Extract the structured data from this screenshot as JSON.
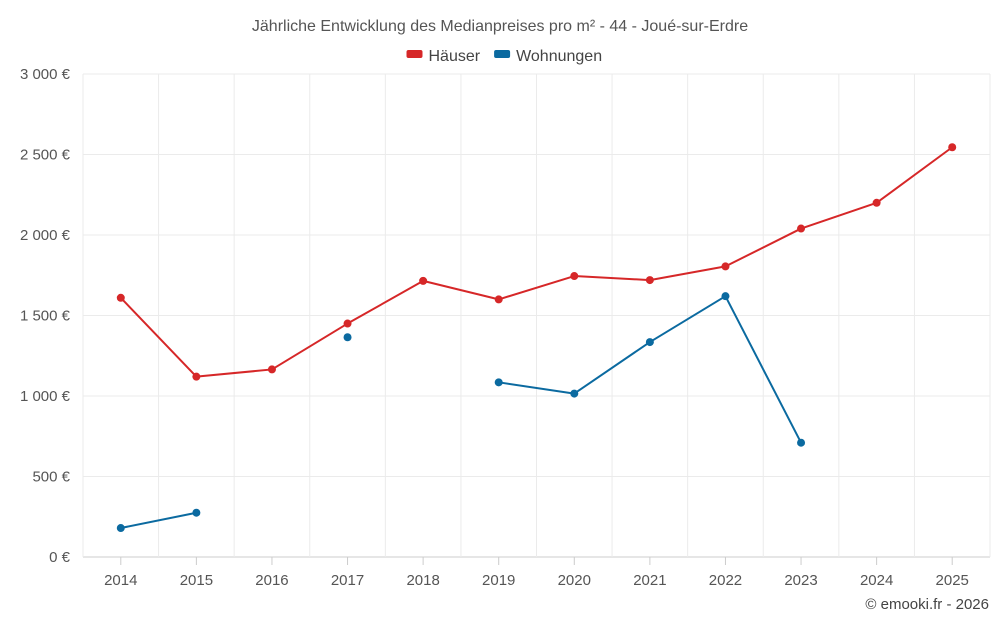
{
  "chart_data": {
    "type": "line",
    "title": "Jährliche Entwicklung des Medianpreises pro m² - 44 - Joué-sur-Erdre",
    "xlabel": "",
    "ylabel": "",
    "categories": [
      "2014",
      "2015",
      "2016",
      "2017",
      "2018",
      "2019",
      "2020",
      "2021",
      "2022",
      "2023",
      "2024",
      "2025"
    ],
    "ylim": [
      0,
      3000
    ],
    "y_ticks": [
      0,
      500,
      1000,
      1500,
      2000,
      2500,
      3000
    ],
    "y_tick_labels": [
      "0 €",
      "500 €",
      "1 000 €",
      "1 500 €",
      "2 000 €",
      "2 500 €",
      "3 000 €"
    ],
    "grid": true,
    "legend_position": "top-center",
    "series": [
      {
        "name": "Häuser",
        "color": "#d62728",
        "values": [
          1610,
          1120,
          1165,
          1450,
          1715,
          1600,
          1745,
          1720,
          1805,
          2040,
          2200,
          2545
        ]
      },
      {
        "name": "Wohnungen",
        "color": "#0b6aa0",
        "values": [
          180,
          275,
          null,
          1365,
          null,
          1085,
          1015,
          1335,
          1620,
          710,
          null,
          null
        ]
      }
    ]
  },
  "credit": "© emooki.fr - 2026"
}
